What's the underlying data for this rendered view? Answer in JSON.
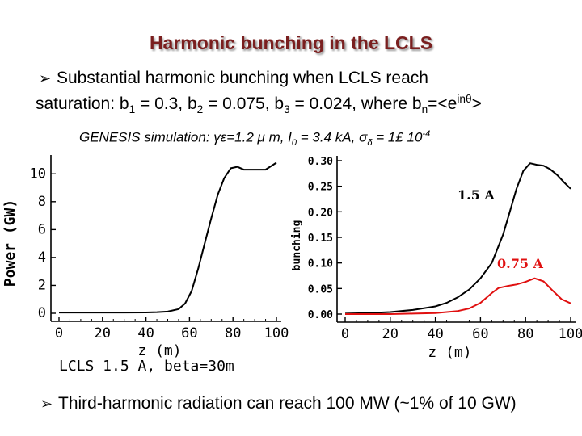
{
  "title": "Harmonic bunching in the LCLS",
  "bullet1": {
    "line1": "Substantial harmonic bunching when LCLS reach",
    "line2_prefix": "saturation: b",
    "line2_parts": [
      {
        "text": "saturation: b",
        "sub": "1"
      },
      {
        "text": " = 0.3, b",
        "sub": "2"
      },
      {
        "text": " = 0.075, b",
        "sub": "3"
      },
      {
        "text": " = 0.024, where b",
        "sub": "n"
      }
    ],
    "line2_tail": "=<e",
    "line2_sup": "inθ",
    "line2_end": ">"
  },
  "sim_params": {
    "prefix": "GENESIS simulation: ",
    "g": "γε=1.2 μ m, I",
    "g_sub": "0",
    "mid": " = 3.4 kA, σ",
    "mid_sub": "δ",
    "end": " = 1£ 10",
    "end_sup": "-4"
  },
  "bullet2": "Third-harmonic radiation can reach 100 MW (~1% of 10 GW)",
  "colors": {
    "title": "#7a1f1f",
    "red_series": "#e01010",
    "black_series": "#000000"
  },
  "chart_data": [
    {
      "type": "line",
      "xlabel": "z (m)",
      "ylabel": "Power (GW)",
      "xlim": [
        0,
        100
      ],
      "ylim": [
        0,
        11
      ],
      "xticks": [
        0,
        20,
        40,
        60,
        80,
        100
      ],
      "yticks": [
        0,
        2,
        4,
        6,
        8,
        10
      ],
      "caption": "LCLS 1.5 A, beta=30m",
      "series": [
        {
          "color": "#000000",
          "x": [
            0,
            10,
            20,
            30,
            40,
            45,
            50,
            55,
            58,
            61,
            64,
            67,
            70,
            73,
            76,
            79,
            82,
            85,
            90,
            95,
            100
          ],
          "y": [
            0.05,
            0.05,
            0.05,
            0.05,
            0.06,
            0.08,
            0.12,
            0.3,
            0.7,
            1.6,
            3.2,
            5.0,
            6.8,
            8.5,
            9.7,
            10.4,
            10.5,
            10.3,
            10.3,
            10.3,
            10.8
          ]
        }
      ]
    },
    {
      "type": "line",
      "xlabel": "z (m)",
      "ylabel": "bunching",
      "xlim": [
        0,
        100
      ],
      "ylim": [
        0,
        0.3
      ],
      "xticks": [
        0,
        20,
        40,
        60,
        80,
        100
      ],
      "yticks": [
        0.0,
        0.05,
        0.1,
        0.15,
        0.2,
        0.25,
        0.3
      ],
      "ytick_labels": [
        "0.00",
        "0.05",
        "0.10",
        "0.15",
        "0.20",
        "0.25",
        "0.30"
      ],
      "annotations": [
        "1.5 A",
        "0.75 A"
      ],
      "series": [
        {
          "color": "#000000",
          "x": [
            0,
            10,
            20,
            30,
            40,
            45,
            50,
            55,
            60,
            65,
            70,
            73,
            76,
            79,
            82,
            85,
            88,
            91,
            94,
            97,
            100
          ],
          "y": [
            0.001,
            0.002,
            0.004,
            0.008,
            0.015,
            0.022,
            0.033,
            0.048,
            0.07,
            0.1,
            0.155,
            0.2,
            0.245,
            0.28,
            0.295,
            0.292,
            0.29,
            0.283,
            0.272,
            0.258,
            0.245
          ]
        },
        {
          "color": "#e01010",
          "x": [
            0,
            10,
            20,
            30,
            40,
            50,
            55,
            60,
            65,
            68,
            72,
            76,
            80,
            84,
            88,
            92,
            96,
            100
          ],
          "y": [
            0.0,
            0.0,
            0.0,
            0.001,
            0.002,
            0.006,
            0.011,
            0.022,
            0.041,
            0.051,
            0.055,
            0.058,
            0.063,
            0.07,
            0.064,
            0.046,
            0.029,
            0.021
          ]
        }
      ]
    }
  ]
}
